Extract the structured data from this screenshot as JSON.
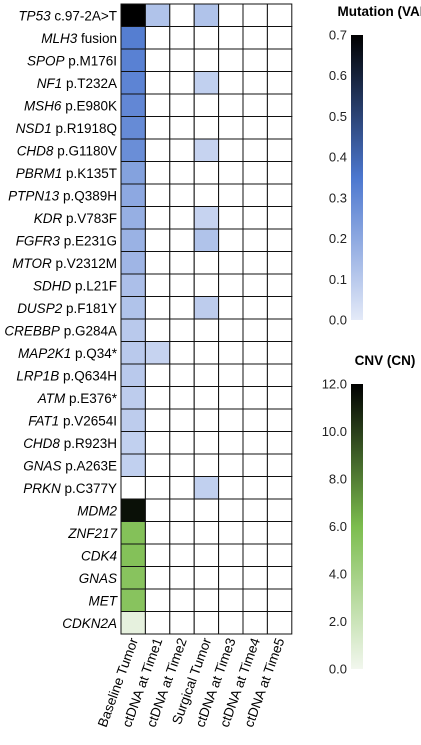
{
  "chart_data": {
    "type": "heatmap",
    "columns": [
      "Baseline Tumor",
      "ctDNA at Time1",
      "ctDNA at Time2",
      "Surgical Tumor",
      "ctDNA at Time3",
      "ctDNA at Time4",
      "ctDNA at Time5"
    ],
    "rows": [
      {
        "gene": "TP53",
        "change": "c.97-2A>T",
        "kind": "mutation",
        "values": [
          0.7,
          0.12,
          0,
          0.12,
          0,
          0,
          0
        ]
      },
      {
        "gene": "MLH3",
        "change": "fusion",
        "kind": "mutation",
        "values": [
          0.33,
          0,
          0,
          0,
          0,
          0,
          0
        ]
      },
      {
        "gene": "SPOP",
        "change": "p.M176I",
        "kind": "mutation",
        "values": [
          0.32,
          0,
          0,
          0,
          0,
          0,
          0
        ]
      },
      {
        "gene": "NF1",
        "change": "p.T232A",
        "kind": "mutation",
        "values": [
          0.31,
          0,
          0,
          0.08,
          0,
          0,
          0
        ]
      },
      {
        "gene": "MSH6",
        "change": "p.E980K",
        "kind": "mutation",
        "values": [
          0.3,
          0,
          0,
          0,
          0,
          0,
          0
        ]
      },
      {
        "gene": "NSD1",
        "change": "p.R1918Q",
        "kind": "mutation",
        "values": [
          0.29,
          0,
          0,
          0,
          0,
          0,
          0
        ]
      },
      {
        "gene": "CHD8",
        "change": "p.G1180V",
        "kind": "mutation",
        "values": [
          0.28,
          0,
          0,
          0.07,
          0,
          0,
          0
        ]
      },
      {
        "gene": "PBRM1",
        "change": "p.K135T",
        "kind": "mutation",
        "values": [
          0.22,
          0,
          0,
          0,
          0,
          0,
          0
        ]
      },
      {
        "gene": "PTPN13",
        "change": "p.Q389H",
        "kind": "mutation",
        "values": [
          0.2,
          0,
          0,
          0,
          0,
          0,
          0
        ]
      },
      {
        "gene": "KDR",
        "change": "p.V783F",
        "kind": "mutation",
        "values": [
          0.18,
          0,
          0,
          0.07,
          0,
          0,
          0
        ]
      },
      {
        "gene": "FGFR3",
        "change": "p.E231G",
        "kind": "mutation",
        "values": [
          0.17,
          0,
          0,
          0.12,
          0,
          0,
          0
        ]
      },
      {
        "gene": "MTOR",
        "change": "p.V2312M",
        "kind": "mutation",
        "values": [
          0.16,
          0,
          0,
          0,
          0,
          0,
          0
        ]
      },
      {
        "gene": "SDHD",
        "change": "p.L21F",
        "kind": "mutation",
        "values": [
          0.13,
          0,
          0,
          0,
          0,
          0,
          0
        ]
      },
      {
        "gene": "DUSP2",
        "change": "p.F181Y",
        "kind": "mutation",
        "values": [
          0.12,
          0,
          0,
          0.09,
          0,
          0,
          0
        ]
      },
      {
        "gene": "CREBBP",
        "change": "p.G284A",
        "kind": "mutation",
        "values": [
          0.1,
          0,
          0,
          0,
          0,
          0,
          0
        ]
      },
      {
        "gene": "MAP2K1",
        "change": "p.Q34*",
        "kind": "mutation",
        "values": [
          0.1,
          0.07,
          0,
          0,
          0,
          0,
          0
        ]
      },
      {
        "gene": "LRP1B",
        "change": "p.Q634H",
        "kind": "mutation",
        "values": [
          0.1,
          0,
          0,
          0,
          0,
          0,
          0
        ]
      },
      {
        "gene": "ATM",
        "change": "p.E376*",
        "kind": "mutation",
        "values": [
          0.09,
          0,
          0,
          0,
          0,
          0,
          0
        ]
      },
      {
        "gene": "FAT1",
        "change": "p.V2654I",
        "kind": "mutation",
        "values": [
          0.09,
          0,
          0,
          0,
          0,
          0,
          0
        ]
      },
      {
        "gene": "CHD8",
        "change": "p.R923H",
        "kind": "mutation",
        "values": [
          0.08,
          0,
          0,
          0,
          0,
          0,
          0
        ]
      },
      {
        "gene": "GNAS",
        "change": "p.A263E",
        "kind": "mutation",
        "values": [
          0.08,
          0,
          0,
          0,
          0,
          0,
          0
        ]
      },
      {
        "gene": "PRKN",
        "change": "p.C377Y",
        "kind": "mutation",
        "values": [
          0,
          0,
          0,
          0.08,
          0,
          0,
          0
        ]
      },
      {
        "gene": "MDM2",
        "change": "",
        "kind": "cnv",
        "values": [
          11.5,
          0,
          0,
          0,
          0,
          0,
          0
        ]
      },
      {
        "gene": "ZNF217",
        "change": "",
        "kind": "cnv",
        "values": [
          5.6,
          0,
          0,
          0,
          0,
          0,
          0
        ]
      },
      {
        "gene": "CDK4",
        "change": "",
        "kind": "cnv",
        "values": [
          5.6,
          0,
          0,
          0,
          0,
          0,
          0
        ]
      },
      {
        "gene": "GNAS",
        "change": "",
        "kind": "cnv",
        "values": [
          5.4,
          0,
          0,
          0,
          0,
          0,
          0
        ]
      },
      {
        "gene": "MET",
        "change": "",
        "kind": "cnv",
        "values": [
          5.4,
          0,
          0,
          0,
          0,
          0,
          0
        ]
      },
      {
        "gene": "CDKN2A",
        "change": "",
        "kind": "cnv",
        "values": [
          0.6,
          0,
          0,
          0,
          0,
          0,
          0
        ]
      }
    ],
    "legends": [
      {
        "title": "Mutation (VAF)",
        "kind": "mutation",
        "min": 0.0,
        "max": 0.7,
        "ticks": [
          "0.0",
          "0.1",
          "0.2",
          "0.3",
          "0.4",
          "0.5",
          "0.6",
          "0.7"
        ],
        "colors": [
          "#e4eaf8",
          "#4c77cf",
          "#000000"
        ]
      },
      {
        "title": "CNV (CN)",
        "kind": "cnv",
        "min": 0.0,
        "max": 12.0,
        "ticks": [
          "0.0",
          "2.0",
          "4.0",
          "6.0",
          "8.0",
          "10.0",
          "12.0"
        ],
        "colors": [
          "#f2f7ee",
          "#7cbd4e",
          "#000000"
        ]
      }
    ]
  }
}
